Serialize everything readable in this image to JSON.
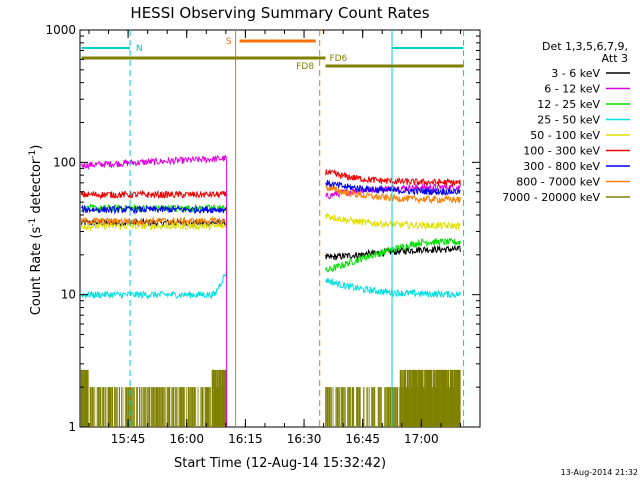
{
  "chart_data": {
    "type": "line",
    "title": "HESSI Observing Summary Count Rates",
    "xlabel": "Start Time (12-Aug-14 15:32:42)",
    "ylabel_main": "Count Rate (s",
    "ylabel_sup1": "-1",
    "ylabel_mid": " detector",
    "ylabel_sup2": "-1",
    "ylabel_end": ")",
    "y_scale": "log",
    "ylim": [
      1,
      1000
    ],
    "xlim": [
      "15:32:42",
      "17:15:00"
    ],
    "x_ticks": [
      "15:45",
      "16:00",
      "16:15",
      "16:30",
      "16:45",
      "17:00"
    ],
    "y_ticks": [
      "1",
      "10",
      "100",
      "1000"
    ],
    "legend_header": [
      "Det 1,3,5,6,7,9,",
      "Att 3"
    ],
    "legend_position": "right",
    "series": [
      {
        "name": "3 - 6 keV",
        "color": "#000000",
        "values_segment1": 35,
        "values_segment2": [
          19,
          22
        ]
      },
      {
        "name": "6 - 12 keV",
        "color": "#e000e0",
        "values_segment1": [
          95,
          107
        ],
        "values_segment2": [
          55,
          65
        ]
      },
      {
        "name": "12 - 25 keV",
        "color": "#00e000",
        "values_segment1": 45,
        "values_segment2": [
          15,
          25
        ]
      },
      {
        "name": "25 - 50 keV",
        "color": "#00e0e0",
        "values_segment1": [
          10,
          14
        ],
        "values_segment2": [
          13,
          10
        ]
      },
      {
        "name": "50 - 100 keV",
        "color": "#e0e000",
        "values_segment1": 33,
        "values_segment2": [
          40,
          33
        ]
      },
      {
        "name": "100 - 300 keV",
        "color": "#ee0000",
        "values_segment1": 57,
        "values_segment2": [
          85,
          70
        ]
      },
      {
        "name": "300 - 800 keV",
        "color": "#0000ee",
        "values_segment1": 44,
        "values_segment2": [
          70,
          60
        ]
      },
      {
        "name": "800 - 7000 keV",
        "color": "#ff8000",
        "values_segment1": 36,
        "values_segment2": [
          65,
          52
        ]
      },
      {
        "name": "7000 - 20000 keV",
        "color": "#808000",
        "values_segment1": [
          1,
          2.7
        ],
        "values_segment2": [
          1,
          2.7
        ]
      }
    ],
    "annotations": {
      "night": "N",
      "saa": "S",
      "fd1": "FD6",
      "fd2": "FD8"
    },
    "timestamp": "13-Aug-2014 21:32"
  }
}
